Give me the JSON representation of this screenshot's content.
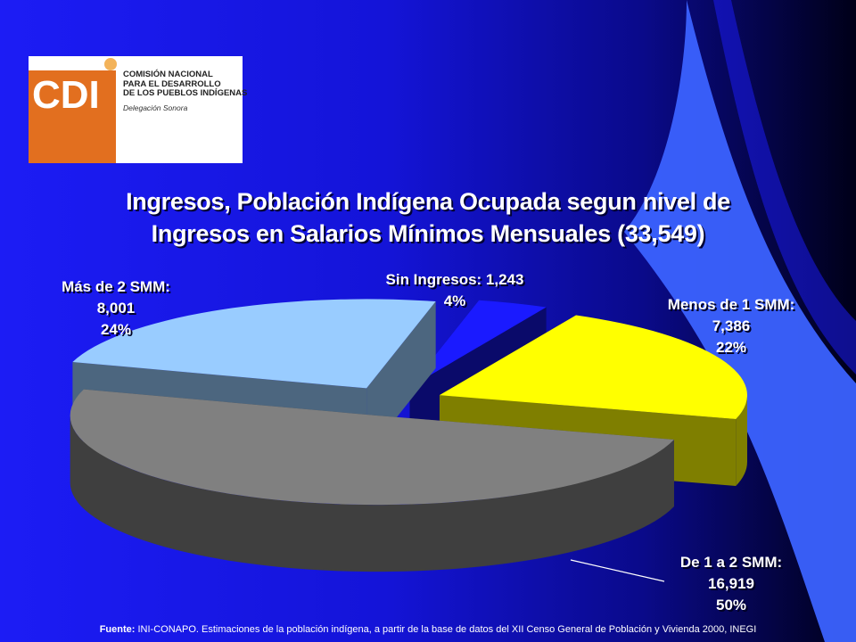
{
  "logo": {
    "mark": "CDI",
    "lines": [
      "COMISIÓN NACIONAL",
      "PARA EL DESARROLLO",
      "DE LOS PUEBLOS INDÍGENAS"
    ],
    "subtitle": "Delegación Sonora",
    "colors": {
      "orange": "#e26f1f",
      "dot": "#f3b35a"
    }
  },
  "chart_data": {
    "type": "pie",
    "title_line1": "Ingresos, Población Indígena Ocupada segun nivel de",
    "title_line2": "Ingresos en Salarios Mínimos Mensuales (33,549)",
    "slices": [
      {
        "name": "Sin Ingresos",
        "label": "Sin Ingresos: 1,243",
        "value": 1243,
        "percent": "4%",
        "top_color": "#1a1aff",
        "side_color": "#0a0a6a"
      },
      {
        "name": "Menos de 1 SMM",
        "label": "Menos de 1 SMM:",
        "value": 7386,
        "value_text": "7,386",
        "percent": "22%",
        "top_color": "#ffff00",
        "side_color": "#7f7f00"
      },
      {
        "name": "De 1 a 2 SMM",
        "label": "De 1 a 2 SMM:",
        "value": 16919,
        "value_text": "16,919",
        "percent": "50%",
        "top_color": "#808080",
        "side_color": "#3f3f3f"
      },
      {
        "name": "Más de 2 SMM",
        "label": "Más de 2 SMM:",
        "value": 8001,
        "value_text": "8,001",
        "percent": "24%",
        "top_color": "#99ccff",
        "side_color": "#4c667f"
      }
    ]
  },
  "source": {
    "prefix": "Fuente:",
    "text": " INI-CONAPO. Estimaciones de la población indígena, a partir de la base de datos del XII Censo General de Población y Vivienda 2000, INEGI"
  }
}
